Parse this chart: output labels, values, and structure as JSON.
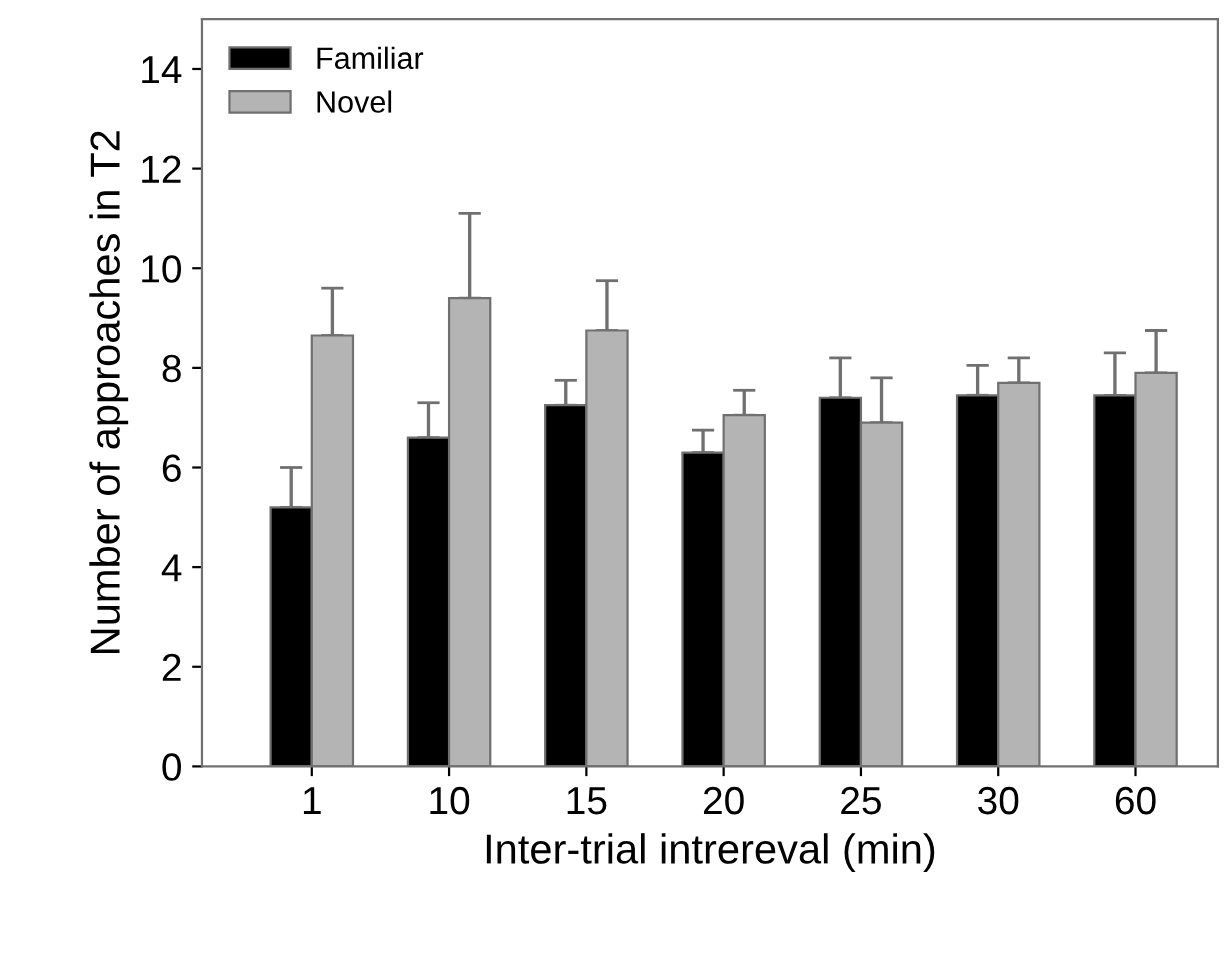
{
  "chart_data": {
    "type": "bar",
    "xlabel": "Inter-trial intrereval (min)",
    "ylabel": "Number of approaches in T2",
    "categories": [
      "1",
      "10",
      "15",
      "20",
      "25",
      "30",
      "60"
    ],
    "series": [
      {
        "name": "Familiar",
        "color": "#000000",
        "values": [
          5.2,
          6.6,
          7.25,
          6.3,
          7.4,
          7.45,
          7.45
        ],
        "errors": [
          0.8,
          0.7,
          0.5,
          0.45,
          0.8,
          0.6,
          0.85
        ]
      },
      {
        "name": "Novel",
        "color": "#b4b4b4",
        "values": [
          8.65,
          9.4,
          8.75,
          7.05,
          6.9,
          7.7,
          7.9
        ],
        "errors": [
          0.95,
          1.7,
          1.0,
          0.5,
          0.9,
          0.5,
          0.85
        ]
      }
    ],
    "ylim": [
      0,
      15
    ],
    "yticks": [
      0,
      2,
      4,
      6,
      8,
      10,
      12,
      14
    ],
    "grid": false,
    "legend": "top left"
  }
}
